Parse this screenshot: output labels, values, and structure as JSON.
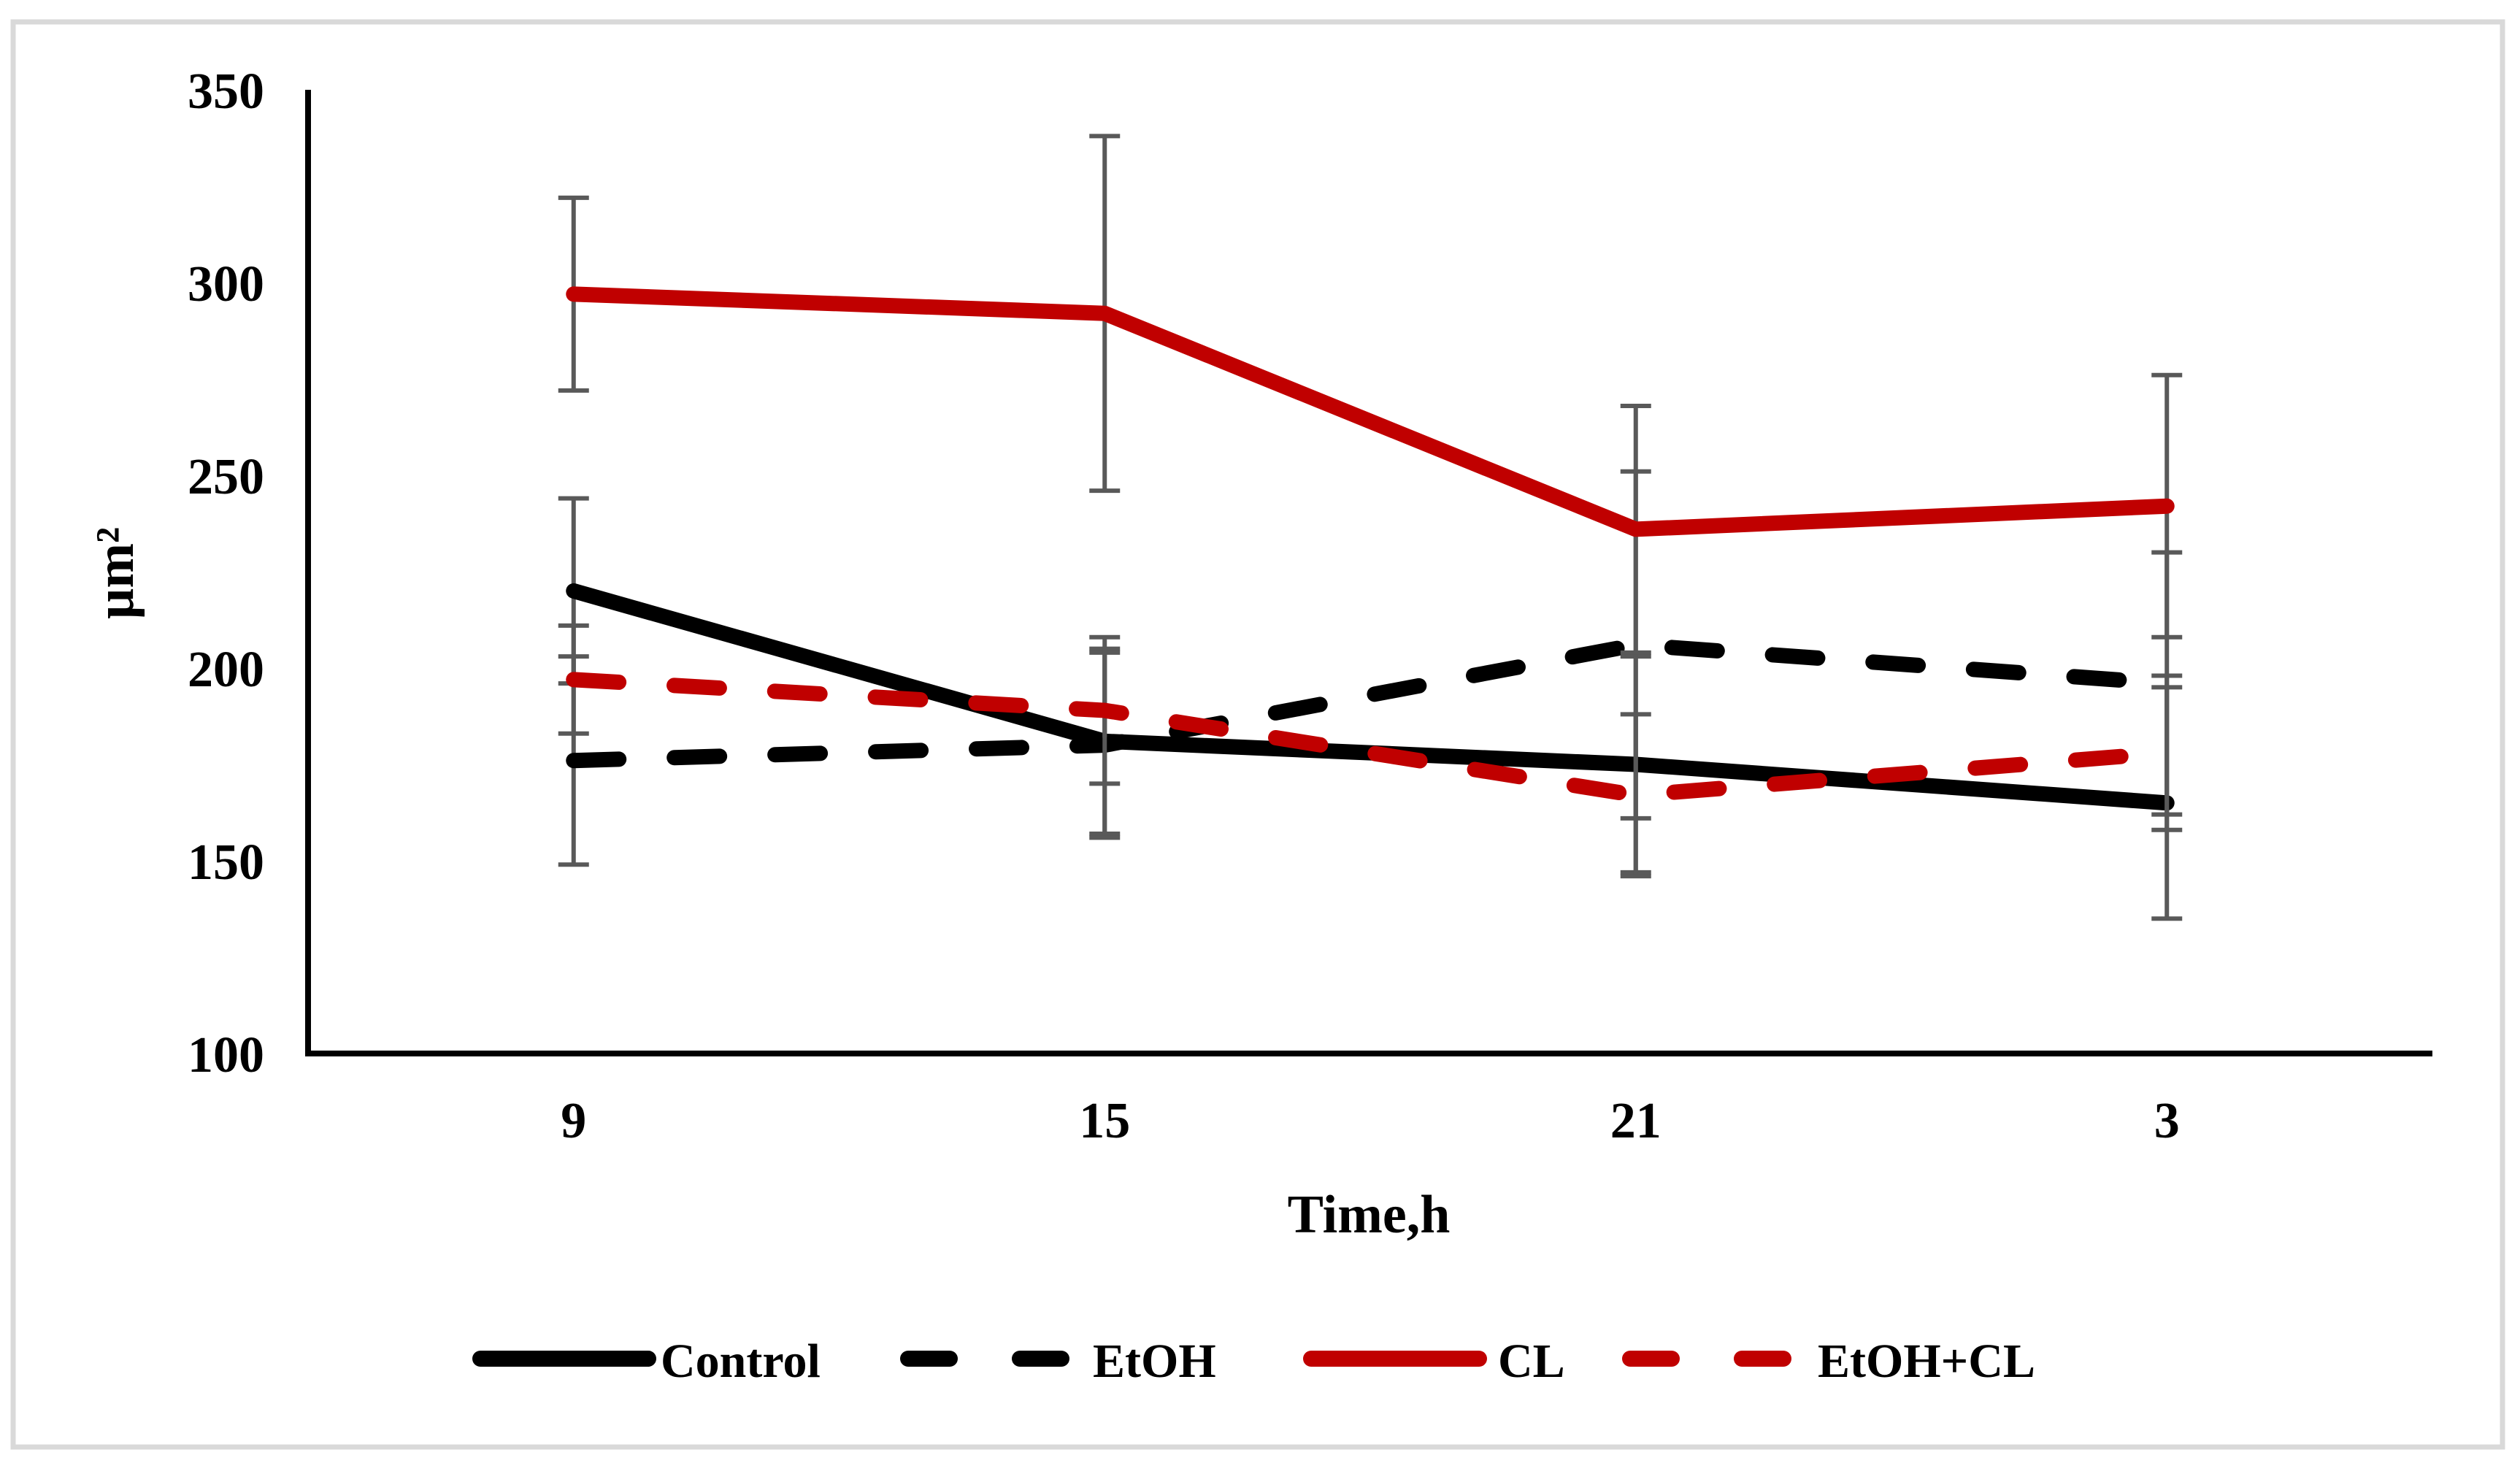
{
  "window": {
    "background": "#FFFFFF",
    "frame_border_color": "#D9D9D9"
  },
  "chart_data": {
    "type": "line",
    "title": "",
    "xlabel": "Time,h",
    "ylabel": "µm²",
    "categories": [
      "9",
      "15",
      "21",
      "3"
    ],
    "ylim": [
      100,
      350
    ],
    "yticks": [
      100,
      150,
      200,
      250,
      300,
      350
    ],
    "grid": false,
    "legend_position": "bottom",
    "axis_color": "#000000",
    "error_bar_color": "#595959",
    "series": [
      {
        "name": "Control",
        "color": "#000000",
        "dash": "solid",
        "values": [
          220,
          181,
          175,
          165
        ],
        "errors": [
          24,
          24,
          28,
          30
        ]
      },
      {
        "name": "EtOH",
        "color": "#000000",
        "dash": "dashed",
        "values": [
          176,
          180,
          206,
          196
        ],
        "errors": [
          27,
          24,
          45,
          34
        ]
      },
      {
        "name": "CL",
        "color": "#C00000",
        "dash": "solid",
        "values": [
          297,
          292,
          236,
          242
        ],
        "errors": [
          25,
          46,
          32,
          34
        ]
      },
      {
        "name": "EtOH+CL",
        "color": "#C00000",
        "dash": "dashed",
        "values": [
          197,
          189,
          167,
          178
        ],
        "errors": [
          14,
          19,
          21,
          20
        ]
      }
    ]
  }
}
